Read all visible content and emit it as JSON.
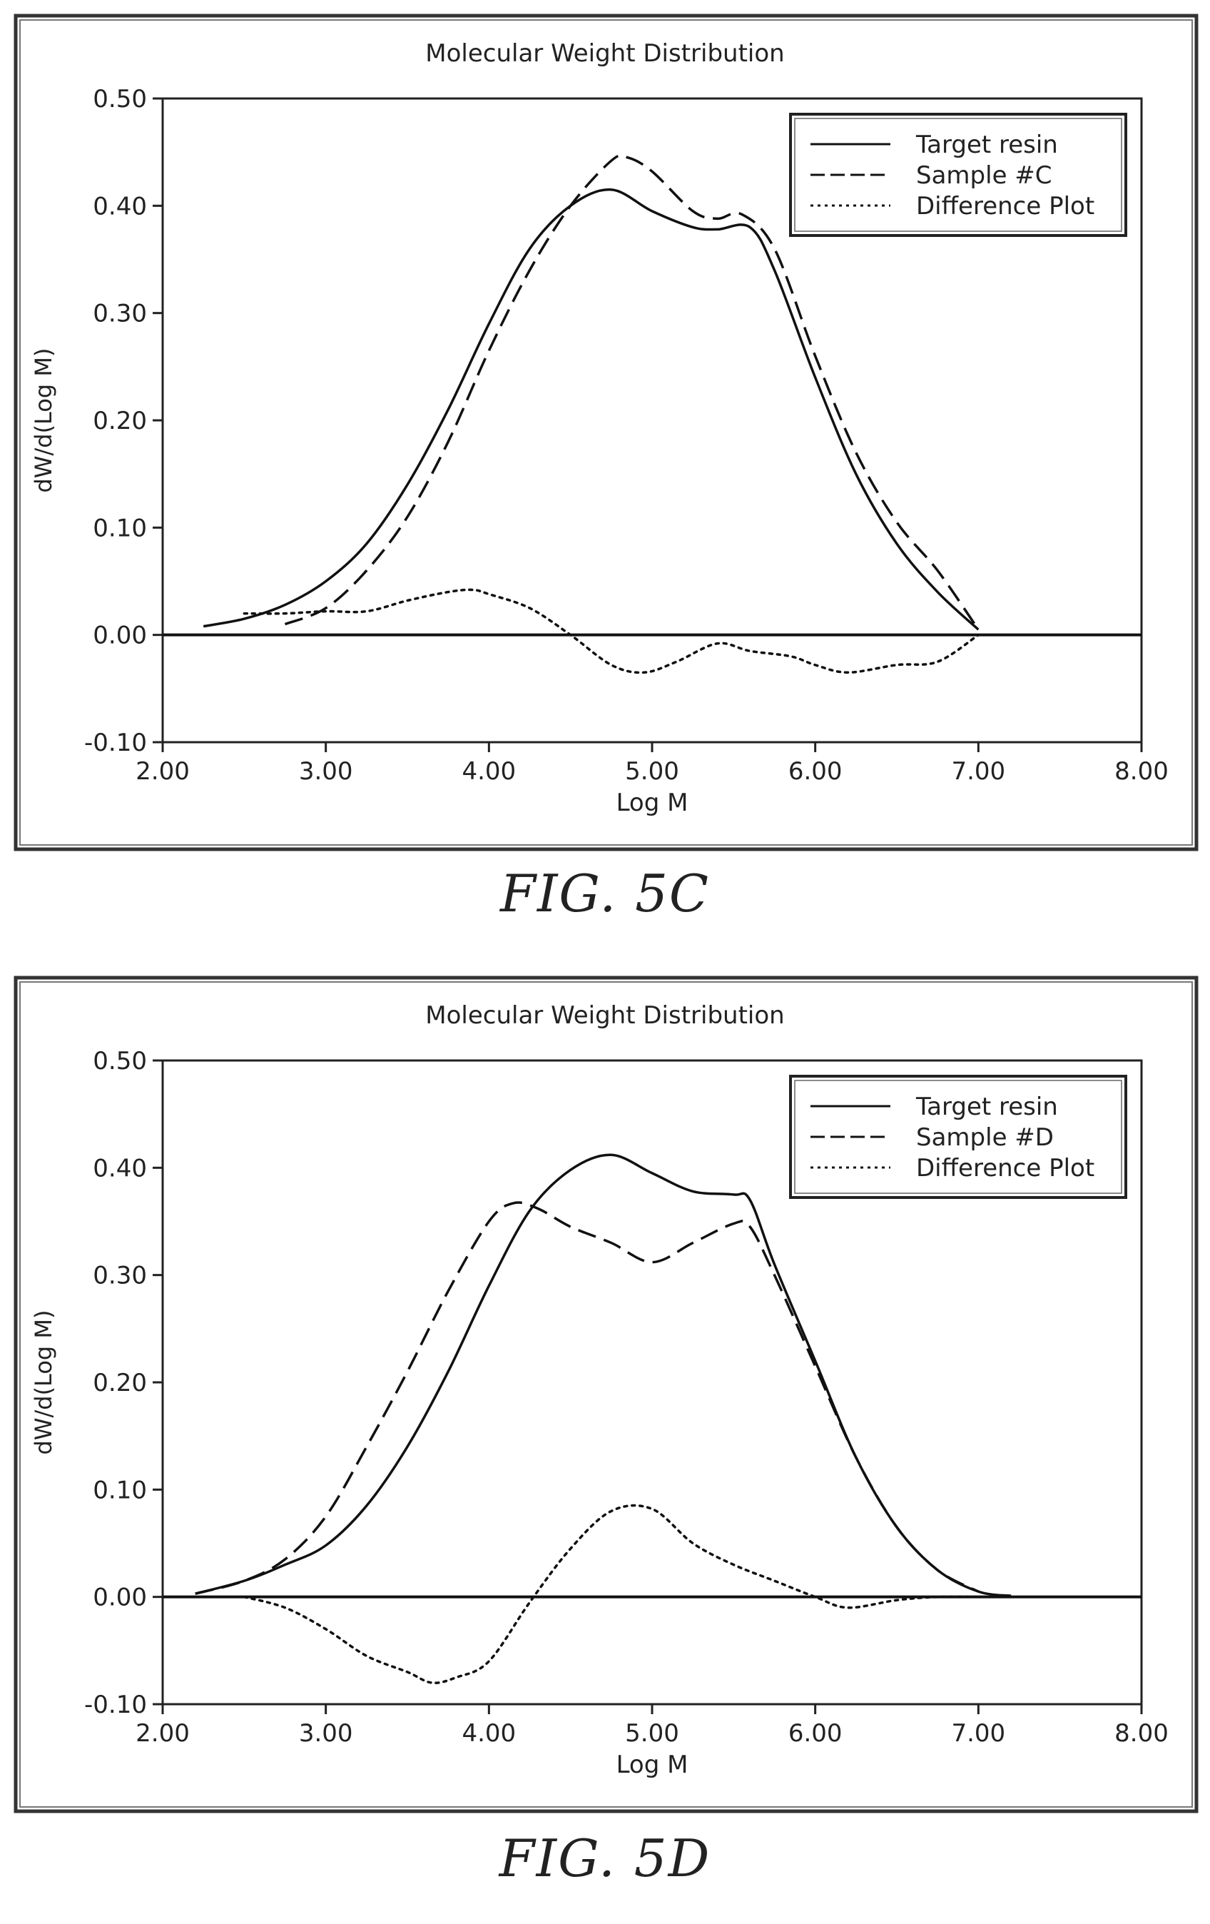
{
  "chart_data": [
    {
      "type": "line",
      "title": "Molecular Weight Distribution",
      "xlabel": "Log M",
      "ylabel": "dW/d(Log M)",
      "xlim": [
        2.0,
        8.0
      ],
      "ylim": [
        -0.1,
        0.5
      ],
      "x_ticks": [
        "2.00",
        "3.00",
        "4.00",
        "5.00",
        "6.00",
        "7.00",
        "8.00"
      ],
      "y_ticks": [
        "-0.10",
        "0.00",
        "0.10",
        "0.20",
        "0.30",
        "0.40",
        "0.50"
      ],
      "grid": false,
      "legend_position": "top-right",
      "caption": "FIG. 5C",
      "series": [
        {
          "name": "Target resin",
          "style": "solid",
          "points": [
            [
              2.25,
              0.008
            ],
            [
              2.5,
              0.015
            ],
            [
              2.75,
              0.028
            ],
            [
              3.0,
              0.05
            ],
            [
              3.25,
              0.085
            ],
            [
              3.5,
              0.14
            ],
            [
              3.75,
              0.21
            ],
            [
              4.0,
              0.29
            ],
            [
              4.25,
              0.36
            ],
            [
              4.5,
              0.4
            ],
            [
              4.75,
              0.415
            ],
            [
              5.0,
              0.395
            ],
            [
              5.25,
              0.38
            ],
            [
              5.4,
              0.378
            ],
            [
              5.6,
              0.38
            ],
            [
              5.75,
              0.34
            ],
            [
              6.0,
              0.24
            ],
            [
              6.25,
              0.15
            ],
            [
              6.5,
              0.085
            ],
            [
              6.75,
              0.04
            ],
            [
              7.0,
              0.005
            ]
          ]
        },
        {
          "name": "Sample #C",
          "style": "dashed",
          "points": [
            [
              2.75,
              0.01
            ],
            [
              3.0,
              0.025
            ],
            [
              3.25,
              0.06
            ],
            [
              3.5,
              0.11
            ],
            [
              3.75,
              0.18
            ],
            [
              4.0,
              0.265
            ],
            [
              4.25,
              0.34
            ],
            [
              4.5,
              0.4
            ],
            [
              4.75,
              0.442
            ],
            [
              4.85,
              0.445
            ],
            [
              5.0,
              0.432
            ],
            [
              5.25,
              0.395
            ],
            [
              5.4,
              0.388
            ],
            [
              5.55,
              0.392
            ],
            [
              5.75,
              0.36
            ],
            [
              6.0,
              0.26
            ],
            [
              6.25,
              0.17
            ],
            [
              6.5,
              0.105
            ],
            [
              6.75,
              0.06
            ],
            [
              7.0,
              0.005
            ]
          ]
        },
        {
          "name": "Difference Plot",
          "style": "dotted",
          "points": [
            [
              2.5,
              0.02
            ],
            [
              2.75,
              0.02
            ],
            [
              3.0,
              0.022
            ],
            [
              3.25,
              0.022
            ],
            [
              3.5,
              0.032
            ],
            [
              3.75,
              0.04
            ],
            [
              3.9,
              0.042
            ],
            [
              4.0,
              0.038
            ],
            [
              4.25,
              0.025
            ],
            [
              4.5,
              0.0
            ],
            [
              4.75,
              -0.028
            ],
            [
              4.95,
              -0.035
            ],
            [
              5.15,
              -0.025
            ],
            [
              5.4,
              -0.008
            ],
            [
              5.6,
              -0.015
            ],
            [
              5.85,
              -0.02
            ],
            [
              6.0,
              -0.028
            ],
            [
              6.2,
              -0.035
            ],
            [
              6.5,
              -0.028
            ],
            [
              6.75,
              -0.025
            ],
            [
              7.0,
              0.0
            ]
          ]
        }
      ]
    },
    {
      "type": "line",
      "title": "Molecular Weight Distribution",
      "xlabel": "Log M",
      "ylabel": "dW/d(Log M)",
      "xlim": [
        2.0,
        8.0
      ],
      "ylim": [
        -0.1,
        0.5
      ],
      "x_ticks": [
        "2.00",
        "3.00",
        "4.00",
        "5.00",
        "6.00",
        "7.00",
        "8.00"
      ],
      "y_ticks": [
        "-0.10",
        "0.00",
        "0.10",
        "0.20",
        "0.30",
        "0.40",
        "0.50"
      ],
      "grid": false,
      "legend_position": "top-right",
      "caption": "FIG. 5D",
      "series": [
        {
          "name": "Target resin",
          "style": "solid",
          "points": [
            [
              2.2,
              0.003
            ],
            [
              2.5,
              0.015
            ],
            [
              2.75,
              0.03
            ],
            [
              3.0,
              0.048
            ],
            [
              3.25,
              0.085
            ],
            [
              3.5,
              0.14
            ],
            [
              3.75,
              0.21
            ],
            [
              4.0,
              0.29
            ],
            [
              4.25,
              0.36
            ],
            [
              4.5,
              0.398
            ],
            [
              4.75,
              0.412
            ],
            [
              5.0,
              0.395
            ],
            [
              5.25,
              0.378
            ],
            [
              5.5,
              0.375
            ],
            [
              5.6,
              0.37
            ],
            [
              5.75,
              0.31
            ],
            [
              6.0,
              0.22
            ],
            [
              6.25,
              0.13
            ],
            [
              6.5,
              0.065
            ],
            [
              6.75,
              0.025
            ],
            [
              7.0,
              0.005
            ],
            [
              7.2,
              0.001
            ]
          ]
        },
        {
          "name": "Sample #D",
          "style": "dashed",
          "points": [
            [
              2.2,
              0.003
            ],
            [
              2.5,
              0.015
            ],
            [
              2.75,
              0.035
            ],
            [
              3.0,
              0.075
            ],
            [
              3.25,
              0.14
            ],
            [
              3.5,
              0.21
            ],
            [
              3.75,
              0.285
            ],
            [
              4.0,
              0.35
            ],
            [
              4.15,
              0.367
            ],
            [
              4.3,
              0.362
            ],
            [
              4.5,
              0.345
            ],
            [
              4.75,
              0.33
            ],
            [
              5.0,
              0.312
            ],
            [
              5.25,
              0.33
            ],
            [
              5.5,
              0.348
            ],
            [
              5.6,
              0.345
            ],
            [
              5.75,
              0.3
            ],
            [
              6.0,
              0.215
            ],
            [
              6.25,
              0.13
            ],
            [
              6.5,
              0.065
            ],
            [
              6.75,
              0.025
            ],
            [
              7.0,
              0.005
            ]
          ]
        },
        {
          "name": "Difference Plot",
          "style": "dotted",
          "points": [
            [
              2.5,
              0.0
            ],
            [
              2.75,
              -0.01
            ],
            [
              3.0,
              -0.03
            ],
            [
              3.25,
              -0.055
            ],
            [
              3.5,
              -0.07
            ],
            [
              3.65,
              -0.08
            ],
            [
              3.8,
              -0.075
            ],
            [
              4.0,
              -0.06
            ],
            [
              4.25,
              -0.005
            ],
            [
              4.5,
              0.045
            ],
            [
              4.75,
              0.08
            ],
            [
              5.0,
              0.082
            ],
            [
              5.25,
              0.05
            ],
            [
              5.5,
              0.03
            ],
            [
              5.75,
              0.015
            ],
            [
              6.0,
              0.0
            ],
            [
              6.2,
              -0.01
            ],
            [
              6.5,
              -0.003
            ],
            [
              6.75,
              0.0
            ],
            [
              7.0,
              0.0
            ]
          ]
        }
      ]
    }
  ]
}
